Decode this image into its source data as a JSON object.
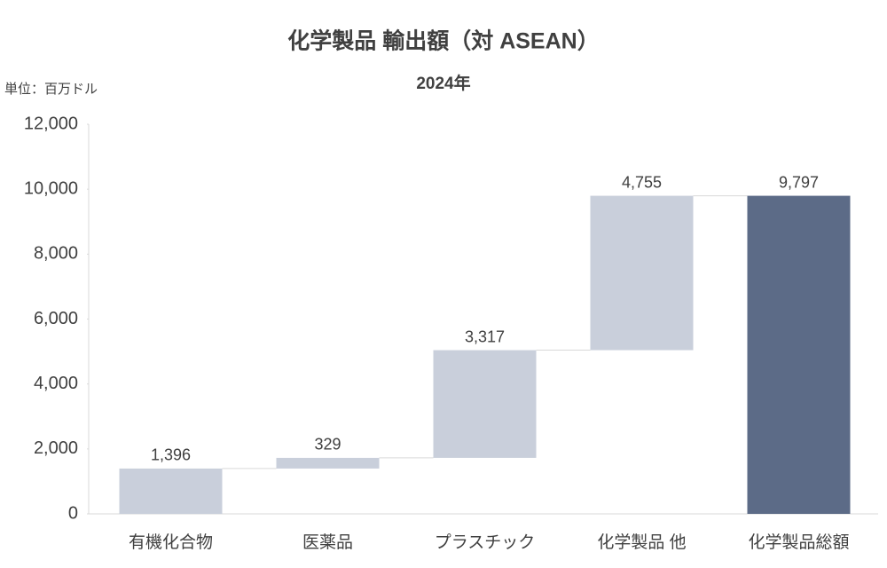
{
  "chart_data": {
    "type": "waterfall",
    "title": "化学製品 輸出額（対 ASEAN）",
    "subtitle": "2024年",
    "unit_label": "単位：百万ドル",
    "categories": [
      "有機化合物",
      "医薬品",
      "プラスチック",
      "化学製品 他",
      "化学製品総額"
    ],
    "values": [
      1396,
      329,
      3317,
      4755,
      9797
    ],
    "value_labels": [
      "1,396",
      "329",
      "3,317",
      "4,755",
      "9,797"
    ],
    "is_total": [
      false,
      false,
      false,
      false,
      true
    ],
    "color": "#c9cfdb",
    "total_color": "#5c6b87",
    "ylim": [
      0,
      12000
    ],
    "yticks": [
      0,
      {
        "value": 2000,
        "label": "2,000"
      },
      {
        "value": 4000,
        "label": "4,000"
      },
      {
        "value": 6000,
        "label": "6,000"
      },
      {
        "value": 8000,
        "label": "8,000"
      },
      {
        "value": 10000,
        "label": "10,000"
      },
      {
        "value": 12000,
        "label": "12,000"
      }
    ],
    "grid": false
  }
}
